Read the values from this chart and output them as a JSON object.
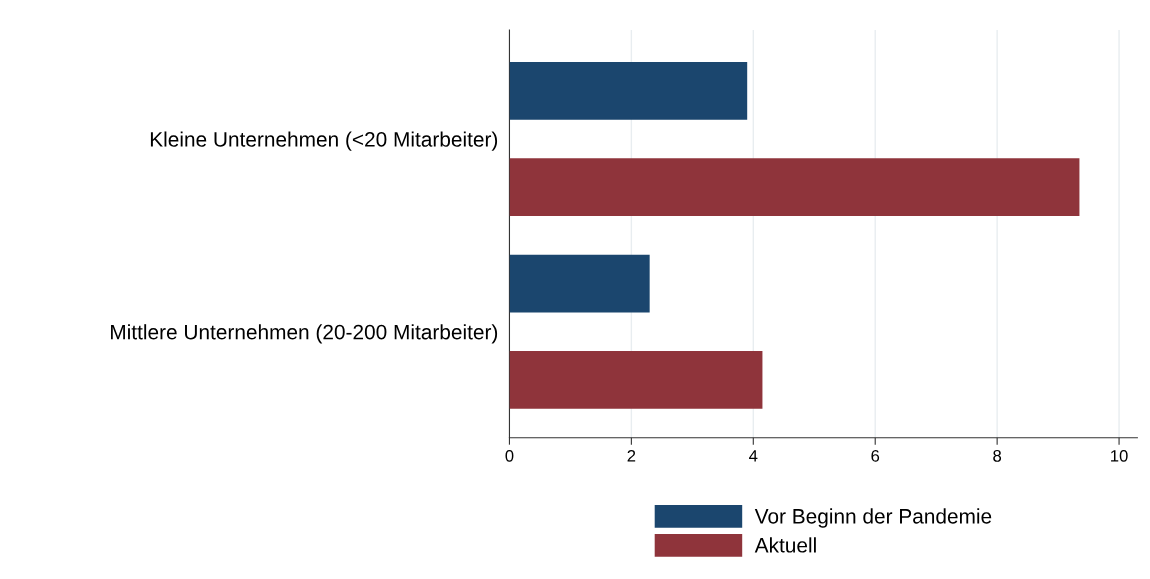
{
  "chart_data": {
    "type": "bar",
    "orientation": "horizontal",
    "categories": [
      "Kleine Unternehmen (<20 Mitarbeiter)",
      "Mittlere Unternehmen (20-200 Mitarbeiter)"
    ],
    "series": [
      {
        "name": "Vor Beginn der Pandemie",
        "color": "#1b466e",
        "values": [
          3.9,
          2.3
        ]
      },
      {
        "name": "Aktuell",
        "color": "#8f343b",
        "values": [
          9.35,
          4.15
        ]
      }
    ],
    "xlim": [
      0,
      10.3
    ],
    "xticks": [
      0,
      2,
      4,
      6,
      8,
      10
    ],
    "grid": "x",
    "legend": "bottom"
  }
}
